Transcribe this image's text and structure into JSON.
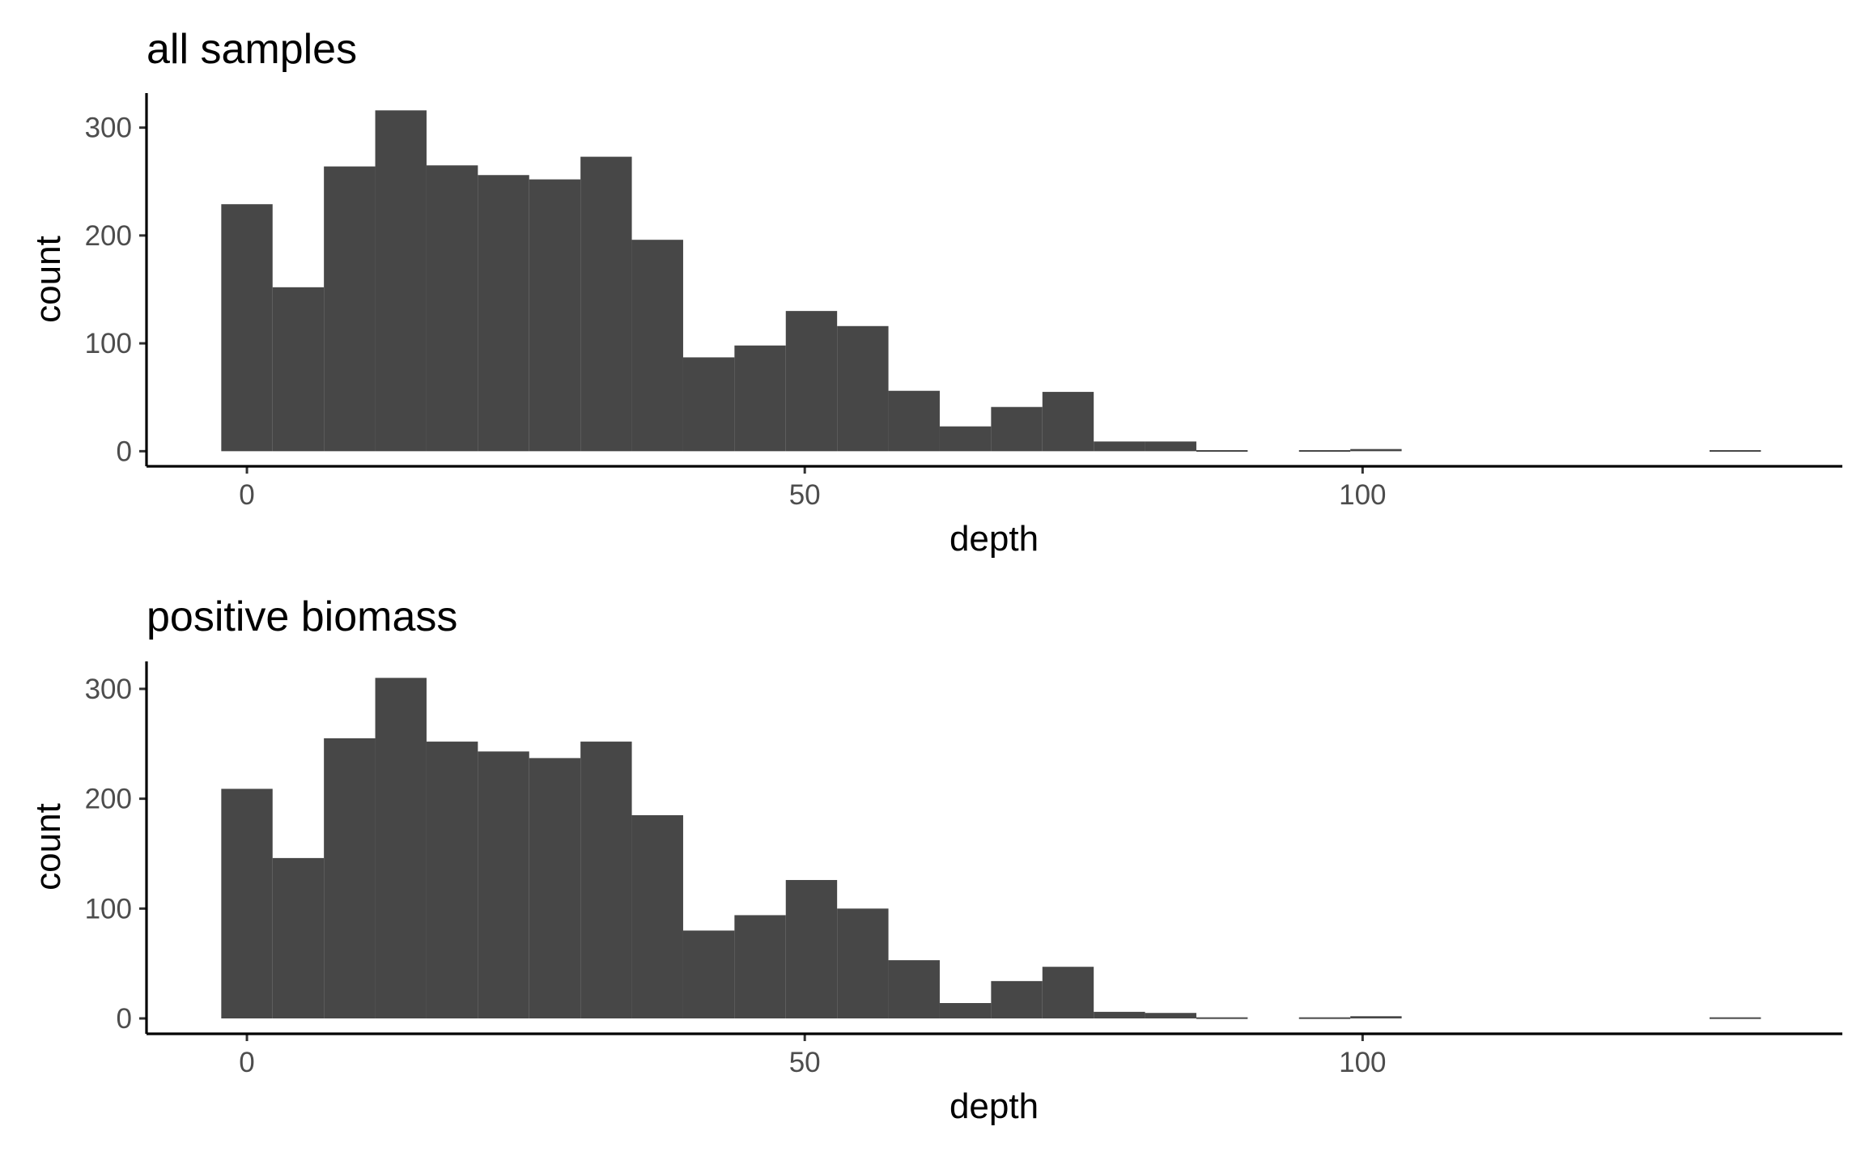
{
  "chart_data": [
    {
      "type": "bar",
      "title": "all samples",
      "xlabel": "depth",
      "ylabel": "count",
      "xlim": [
        -9,
        143
      ],
      "ylim": [
        -14,
        332
      ],
      "xticks": [
        0,
        50,
        100
      ],
      "yticks": [
        0,
        100,
        200,
        300
      ],
      "grid": false,
      "bins": [
        {
          "x0": -2.3,
          "x1": 2.3,
          "count": 229
        },
        {
          "x0": 2.3,
          "x1": 6.9,
          "count": 152
        },
        {
          "x0": 6.9,
          "x1": 11.5,
          "count": 264
        },
        {
          "x0": 11.5,
          "x1": 16.1,
          "count": 316
        },
        {
          "x0": 16.1,
          "x1": 20.7,
          "count": 265
        },
        {
          "x0": 20.7,
          "x1": 25.3,
          "count": 256
        },
        {
          "x0": 25.3,
          "x1": 29.9,
          "count": 252
        },
        {
          "x0": 29.9,
          "x1": 34.5,
          "count": 273
        },
        {
          "x0": 34.5,
          "x1": 39.1,
          "count": 196
        },
        {
          "x0": 39.1,
          "x1": 43.7,
          "count": 87
        },
        {
          "x0": 43.7,
          "x1": 48.3,
          "count": 98
        },
        {
          "x0": 48.3,
          "x1": 52.9,
          "count": 130
        },
        {
          "x0": 52.9,
          "x1": 57.5,
          "count": 116
        },
        {
          "x0": 57.5,
          "x1": 62.1,
          "count": 56
        },
        {
          "x0": 62.1,
          "x1": 66.7,
          "count": 23
        },
        {
          "x0": 66.7,
          "x1": 71.3,
          "count": 41
        },
        {
          "x0": 71.3,
          "x1": 75.9,
          "count": 55
        },
        {
          "x0": 75.9,
          "x1": 80.5,
          "count": 9
        },
        {
          "x0": 80.5,
          "x1": 85.1,
          "count": 9
        },
        {
          "x0": 85.1,
          "x1": 89.7,
          "count": 1
        },
        {
          "x0": 89.7,
          "x1": 94.3,
          "count": 0
        },
        {
          "x0": 94.3,
          "x1": 98.9,
          "count": 1
        },
        {
          "x0": 98.9,
          "x1": 103.5,
          "count": 2
        },
        {
          "x0": 103.5,
          "x1": 108.1,
          "count": 0
        },
        {
          "x0": 108.1,
          "x1": 112.7,
          "count": 0
        },
        {
          "x0": 112.7,
          "x1": 117.3,
          "count": 0
        },
        {
          "x0": 117.3,
          "x1": 121.9,
          "count": 0
        },
        {
          "x0": 121.9,
          "x1": 126.5,
          "count": 0
        },
        {
          "x0": 126.5,
          "x1": 131.1,
          "count": 0
        },
        {
          "x0": 131.1,
          "x1": 135.7,
          "count": 1
        }
      ]
    },
    {
      "type": "bar",
      "title": "positive biomass",
      "xlabel": "depth",
      "ylabel": "count",
      "xlim": [
        -9,
        143
      ],
      "ylim": [
        -14,
        325
      ],
      "xticks": [
        0,
        50,
        100
      ],
      "yticks": [
        0,
        100,
        200,
        300
      ],
      "grid": false,
      "bins": [
        {
          "x0": -2.3,
          "x1": 2.3,
          "count": 209
        },
        {
          "x0": 2.3,
          "x1": 6.9,
          "count": 146
        },
        {
          "x0": 6.9,
          "x1": 11.5,
          "count": 255
        },
        {
          "x0": 11.5,
          "x1": 16.1,
          "count": 310
        },
        {
          "x0": 16.1,
          "x1": 20.7,
          "count": 252
        },
        {
          "x0": 20.7,
          "x1": 25.3,
          "count": 243
        },
        {
          "x0": 25.3,
          "x1": 29.9,
          "count": 237
        },
        {
          "x0": 29.9,
          "x1": 34.5,
          "count": 252
        },
        {
          "x0": 34.5,
          "x1": 39.1,
          "count": 185
        },
        {
          "x0": 39.1,
          "x1": 43.7,
          "count": 80
        },
        {
          "x0": 43.7,
          "x1": 48.3,
          "count": 94
        },
        {
          "x0": 48.3,
          "x1": 52.9,
          "count": 126
        },
        {
          "x0": 52.9,
          "x1": 57.5,
          "count": 100
        },
        {
          "x0": 57.5,
          "x1": 62.1,
          "count": 53
        },
        {
          "x0": 62.1,
          "x1": 66.7,
          "count": 14
        },
        {
          "x0": 66.7,
          "x1": 71.3,
          "count": 34
        },
        {
          "x0": 71.3,
          "x1": 75.9,
          "count": 47
        },
        {
          "x0": 75.9,
          "x1": 80.5,
          "count": 6
        },
        {
          "x0": 80.5,
          "x1": 85.1,
          "count": 5
        },
        {
          "x0": 85.1,
          "x1": 89.7,
          "count": 1
        },
        {
          "x0": 89.7,
          "x1": 94.3,
          "count": 0
        },
        {
          "x0": 94.3,
          "x1": 98.9,
          "count": 1
        },
        {
          "x0": 98.9,
          "x1": 103.5,
          "count": 2
        },
        {
          "x0": 103.5,
          "x1": 108.1,
          "count": 0
        },
        {
          "x0": 108.1,
          "x1": 112.7,
          "count": 0
        },
        {
          "x0": 112.7,
          "x1": 117.3,
          "count": 0
        },
        {
          "x0": 117.3,
          "x1": 121.9,
          "count": 0
        },
        {
          "x0": 121.9,
          "x1": 126.5,
          "count": 0
        },
        {
          "x0": 126.5,
          "x1": 131.1,
          "count": 0
        },
        {
          "x0": 131.1,
          "x1": 135.7,
          "count": 1
        }
      ]
    }
  ]
}
